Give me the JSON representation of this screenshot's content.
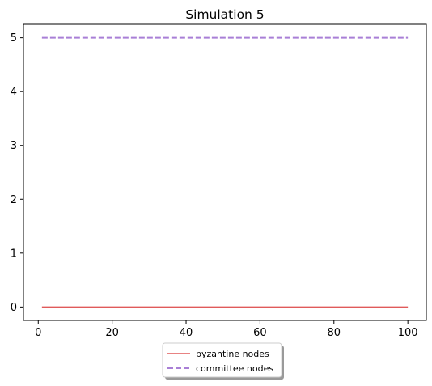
{
  "chart_data": {
    "type": "line",
    "title": "Simulation 5",
    "xlabel": "",
    "ylabel": "",
    "x_range": [
      1,
      100
    ],
    "xlim": [
      -4,
      105
    ],
    "ylim": [
      -0.25,
      5.25
    ],
    "xticks": [
      0,
      20,
      40,
      60,
      80,
      100
    ],
    "yticks": [
      0,
      1,
      2,
      3,
      4,
      5
    ],
    "grid": false,
    "legend": {
      "placement": "bottom-center, below axes",
      "shadow": true
    },
    "series": [
      {
        "name": "byzantine nodes",
        "color": "#e05a5a",
        "style": "solid",
        "x": [
          1,
          100
        ],
        "y": [
          0,
          0
        ]
      },
      {
        "name": "committee nodes",
        "color": "#a97fd6",
        "style": "dashed",
        "x": [
          1,
          100
        ],
        "y": [
          5,
          5
        ]
      }
    ]
  }
}
